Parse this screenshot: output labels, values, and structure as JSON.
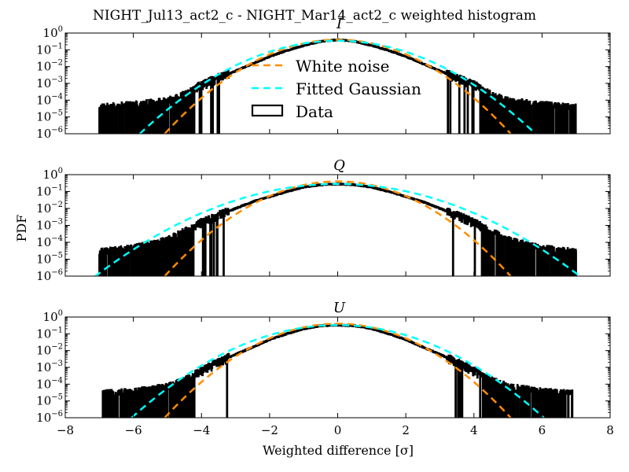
{
  "figure_title": "NIGHT_Jul13_act2_c - NIGHT_Mar14_act2_c weighted histogram",
  "xlabel": "Weighted difference [σ]",
  "ylabel": "PDF",
  "colors": {
    "white_noise": "#ff8c00",
    "gaussian": "#00ffff",
    "data": "#000000"
  },
  "legend": {
    "placement": "top-center (panel I)",
    "items": [
      {
        "label": "White noise",
        "style": "dashed",
        "color": "#ff8c00"
      },
      {
        "label": "Fitted Gaussian",
        "style": "dashed",
        "color": "#00ffff"
      },
      {
        "label": "Data",
        "style": "box",
        "color": "#000000"
      }
    ]
  },
  "chart_data": [
    {
      "type": "line",
      "panel": "I",
      "title": "I",
      "xlim": [
        -8,
        8
      ],
      "ylim": [
        1e-06,
        1
      ],
      "yscale": "log",
      "xticks": [
        "−8",
        "−6",
        "−4",
        "−2",
        "0",
        "2",
        "4",
        "6",
        "8"
      ],
      "yticks": [
        "10^0",
        "10^-1",
        "10^-2",
        "10^-3",
        "10^-4",
        "10^-5",
        "10^-6"
      ],
      "x_tick_labels_shown": false,
      "series": [
        {
          "name": "White noise",
          "kind": "gaussian",
          "mu": 0.0,
          "sigma": 1.0
        },
        {
          "name": "Fitted Gaussian",
          "kind": "gaussian",
          "mu": 0.0,
          "sigma": 1.15
        },
        {
          "name": "Data",
          "kind": "histogram",
          "range": [
            -7.0,
            7.0
          ],
          "floor_to": 1e-06,
          "profile_x": [
            -7.0,
            -6.0,
            -5.0,
            -4.5,
            -4.0,
            -3.5,
            -3.0,
            -2.5,
            -2.0,
            -1.5,
            -1.0,
            -0.5,
            0.0,
            0.5,
            1.0,
            1.5,
            2.0,
            2.5,
            3.0,
            3.5,
            4.0,
            4.5,
            5.0,
            6.0,
            7.0
          ],
          "profile_y": [
            4e-05,
            6e-05,
            0.0001,
            0.00025,
            0.0008,
            0.0022,
            0.0055,
            0.015,
            0.04,
            0.09,
            0.18,
            0.32,
            0.4,
            0.32,
            0.18,
            0.09,
            0.04,
            0.015,
            0.0055,
            0.0022,
            0.0008,
            0.00025,
            0.0001,
            6e-05,
            4e-05
          ]
        }
      ]
    },
    {
      "type": "line",
      "panel": "Q",
      "title": "Q",
      "xlim": [
        -8,
        8
      ],
      "ylim": [
        1e-06,
        1
      ],
      "yscale": "log",
      "xticks": [
        "−8",
        "−6",
        "−4",
        "−2",
        "0",
        "2",
        "4",
        "6",
        "8"
      ],
      "yticks": [
        "10^0",
        "10^-1",
        "10^-2",
        "10^-3",
        "10^-4",
        "10^-5",
        "10^-6"
      ],
      "x_tick_labels_shown": false,
      "series": [
        {
          "name": "White noise",
          "kind": "gaussian",
          "mu": 0.0,
          "sigma": 1.0
        },
        {
          "name": "Fitted Gaussian",
          "kind": "gaussian",
          "mu": 0.0,
          "sigma": 1.42
        },
        {
          "name": "Data",
          "kind": "histogram",
          "range": [
            -7.0,
            7.0
          ],
          "floor_to": 1e-06,
          "profile_x": [
            -7.0,
            -6.0,
            -5.0,
            -4.5,
            -4.0,
            -3.5,
            -3.0,
            -2.5,
            -2.0,
            -1.5,
            -1.0,
            -0.5,
            0.0,
            0.5,
            1.0,
            1.5,
            2.0,
            2.5,
            3.0,
            3.5,
            4.0,
            4.5,
            5.0,
            6.0,
            7.0
          ],
          "profile_y": [
            3e-05,
            5e-05,
            0.00015,
            0.0005,
            0.0015,
            0.004,
            0.01,
            0.025,
            0.05,
            0.1,
            0.18,
            0.25,
            0.28,
            0.25,
            0.18,
            0.1,
            0.05,
            0.025,
            0.01,
            0.004,
            0.0015,
            0.0005,
            0.00015,
            5e-05,
            3e-05
          ]
        }
      ]
    },
    {
      "type": "line",
      "panel": "U",
      "title": "U",
      "xlim": [
        -8,
        8
      ],
      "ylim": [
        1e-06,
        1
      ],
      "yscale": "log",
      "xticks": [
        "−8",
        "−6",
        "−4",
        "−2",
        "0",
        "2",
        "4",
        "6",
        "8"
      ],
      "yticks": [
        "10^0",
        "10^-1",
        "10^-2",
        "10^-3",
        "10^-4",
        "10^-5",
        "10^-6"
      ],
      "x_tick_labels_shown": true,
      "series": [
        {
          "name": "White noise",
          "kind": "gaussian",
          "mu": 0.0,
          "sigma": 1.0
        },
        {
          "name": "Fitted Gaussian",
          "kind": "gaussian",
          "mu": 0.0,
          "sigma": 1.2
        },
        {
          "name": "Data",
          "kind": "histogram",
          "range": [
            -6.9,
            6.9
          ],
          "floor_to": 1e-06,
          "profile_x": [
            -6.9,
            -6.0,
            -5.0,
            -4.5,
            -4.0,
            -3.5,
            -3.0,
            -2.5,
            -2.0,
            -1.5,
            -1.0,
            -0.5,
            0.0,
            0.5,
            1.0,
            1.5,
            2.0,
            2.5,
            3.0,
            3.5,
            4.0,
            4.5,
            5.0,
            6.0,
            6.9
          ],
          "profile_y": [
            3e-05,
            4e-05,
            8e-05,
            0.0002,
            0.0006,
            0.002,
            0.006,
            0.016,
            0.045,
            0.1,
            0.2,
            0.3,
            0.33,
            0.3,
            0.2,
            0.1,
            0.045,
            0.016,
            0.006,
            0.002,
            0.0006,
            0.0002,
            8e-05,
            4e-05,
            3e-05
          ]
        }
      ]
    }
  ]
}
